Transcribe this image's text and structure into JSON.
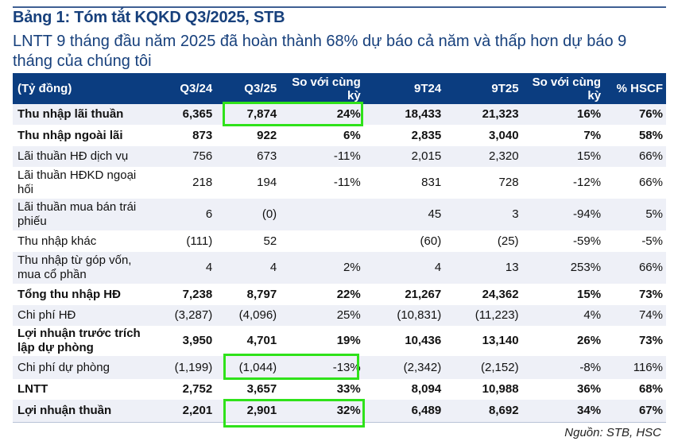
{
  "title": "Bảng 1: Tóm tắt KQKD Q3/2025, STB",
  "subtitle": "LNTT 9 tháng đầu năm 2025 đã hoàn thành 68% dự báo cả năm và thấp hơn dự báo 9 tháng của chúng tôi",
  "table": {
    "headers": [
      "(Tỷ đồng)",
      "Q3/24",
      "Q3/25",
      "So với cùng kỳ",
      "9T24",
      "9T25",
      "So với cùng kỳ",
      "% HSCF"
    ],
    "rows": [
      {
        "label": "Thu nhập lãi thuần",
        "bold": true,
        "cells": [
          "6,365",
          "7,874",
          "24%",
          "18,433",
          "21,323",
          "16%",
          "76%"
        ]
      },
      {
        "label": "Thu nhập ngoài lãi",
        "bold": true,
        "cells": [
          "873",
          "922",
          "6%",
          "2,835",
          "3,040",
          "7%",
          "58%"
        ]
      },
      {
        "label": "Lãi thuần HĐ dịch vụ",
        "bold": false,
        "cells": [
          "756",
          "673",
          "-11%",
          "2,015",
          "2,320",
          "15%",
          "66%"
        ]
      },
      {
        "label": "Lãi thuần HĐKD ngoại hối",
        "bold": false,
        "cells": [
          "218",
          "194",
          "-11%",
          "831",
          "728",
          "-12%",
          "66%"
        ]
      },
      {
        "label": "Lãi thuần mua bán trái phiếu",
        "bold": false,
        "cells": [
          "6",
          "(0)",
          "",
          "45",
          "3",
          "-94%",
          "5%"
        ]
      },
      {
        "label": "Thu nhập khác",
        "bold": false,
        "cells": [
          "(111)",
          "52",
          "",
          "(60)",
          "(25)",
          "-59%",
          "-5%"
        ]
      },
      {
        "label": "Thu nhập từ góp vốn, mua cổ phần",
        "bold": false,
        "cells": [
          "4",
          "4",
          "2%",
          "4",
          "13",
          "253%",
          "66%"
        ]
      },
      {
        "label": "Tổng thu nhập HĐ",
        "bold": true,
        "cells": [
          "7,238",
          "8,797",
          "22%",
          "21,267",
          "24,362",
          "15%",
          "73%"
        ]
      },
      {
        "label": "Chi phí HĐ",
        "bold": false,
        "cells": [
          "(3,287)",
          "(4,096)",
          "25%",
          "(10,831)",
          "(11,223)",
          "4%",
          "74%"
        ]
      },
      {
        "label": "Lợi nhuận trước trích lập dự phòng",
        "bold": true,
        "cells": [
          "3,950",
          "4,701",
          "19%",
          "10,436",
          "13,140",
          "26%",
          "73%"
        ]
      },
      {
        "label": "Chi phí dự phòng",
        "bold": false,
        "cells": [
          "(1,199)",
          "(1,044)",
          "-13%",
          "(2,342)",
          "(2,152)",
          "-8%",
          "116%"
        ]
      },
      {
        "label": "LNTT",
        "bold": true,
        "cells": [
          "2,752",
          "3,657",
          "33%",
          "8,094",
          "10,988",
          "36%",
          "68%"
        ]
      },
      {
        "label": "Lợi nhuận thuần",
        "bold": true,
        "cells": [
          "2,201",
          "2,901",
          "32%",
          "6,489",
          "8,692",
          "34%",
          "67%"
        ]
      }
    ]
  },
  "source": "Nguồn: STB, HSC",
  "colors": {
    "header_bg": "#0b3d80",
    "title": "#17407c",
    "highlight": "#2fe21a",
    "row_shade": "#eef0f7"
  }
}
